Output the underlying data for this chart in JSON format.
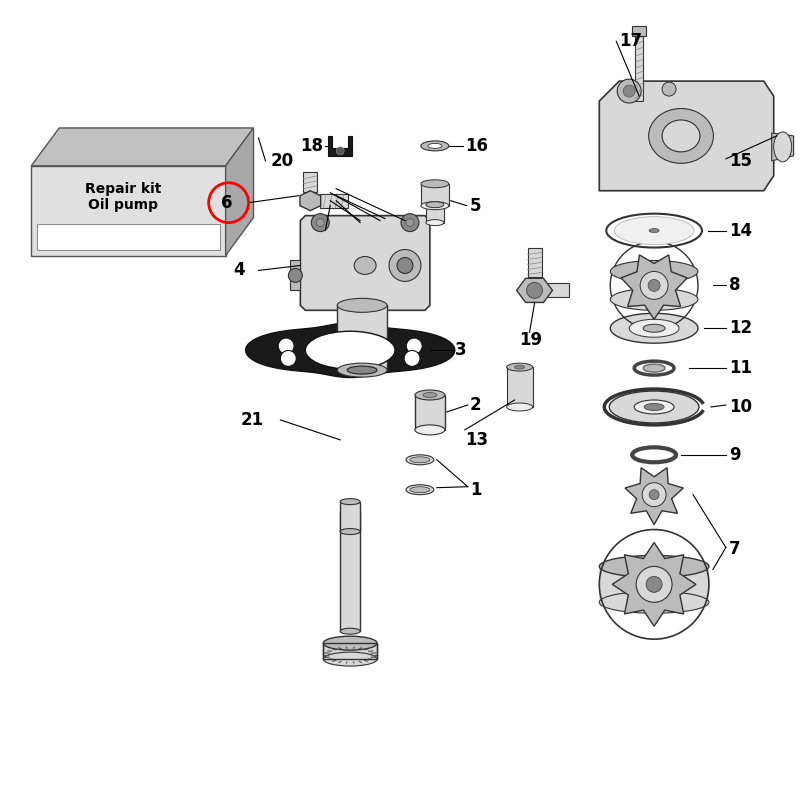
{
  "bg_color": "#ffffff",
  "fig_size": [
    8.0,
    8.0
  ],
  "dpi": 100,
  "repair_kit_text": "Repair kit\nOil pump",
  "label_fontsize": 11,
  "parts_color_light": "#d8d8d8",
  "parts_color_mid": "#bbbbbb",
  "parts_color_dark": "#888888",
  "parts_edge": "#333333",
  "gasket_color": "#1a1a1a",
  "highlight_color": "#ff0000",
  "line_color": "#000000"
}
